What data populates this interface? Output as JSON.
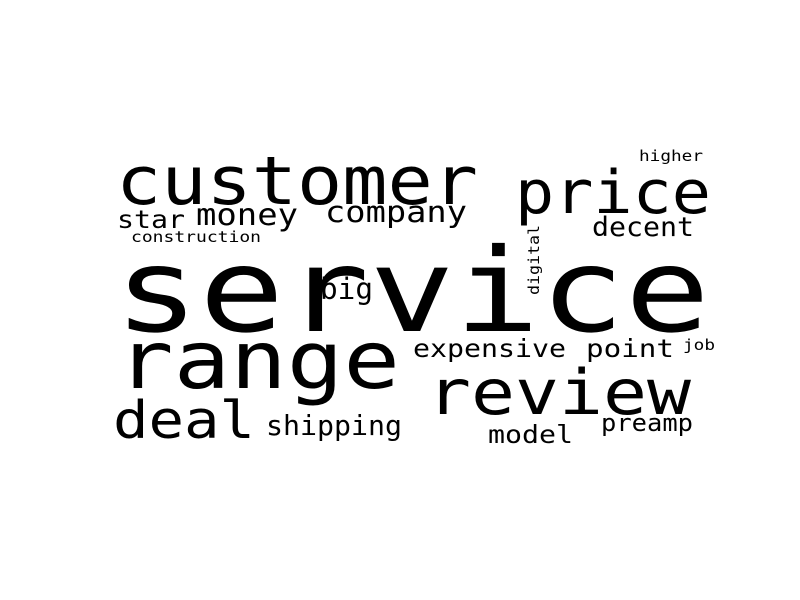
{
  "word_cloud": {
    "text_color": "#000000",
    "background_color": "#ffffff",
    "words": [
      {
        "text": "service",
        "orientation": "horizontal"
      },
      {
        "text": "customer",
        "orientation": "horizontal"
      },
      {
        "text": "range",
        "orientation": "horizontal"
      },
      {
        "text": "price",
        "orientation": "horizontal"
      },
      {
        "text": "review",
        "orientation": "horizontal"
      },
      {
        "text": "deal",
        "orientation": "horizontal"
      },
      {
        "text": "money",
        "orientation": "horizontal"
      },
      {
        "text": "company",
        "orientation": "horizontal"
      },
      {
        "text": "star",
        "orientation": "horizontal"
      },
      {
        "text": "decent",
        "orientation": "horizontal"
      },
      {
        "text": "big",
        "orientation": "horizontal"
      },
      {
        "text": "expensive",
        "orientation": "horizontal"
      },
      {
        "text": "point",
        "orientation": "horizontal"
      },
      {
        "text": "shipping",
        "orientation": "horizontal"
      },
      {
        "text": "model",
        "orientation": "horizontal"
      },
      {
        "text": "preamp",
        "orientation": "horizontal"
      },
      {
        "text": "construction",
        "orientation": "horizontal"
      },
      {
        "text": "higher",
        "orientation": "horizontal"
      },
      {
        "text": "job",
        "orientation": "horizontal"
      },
      {
        "text": "digital",
        "orientation": "vertical"
      }
    ]
  }
}
